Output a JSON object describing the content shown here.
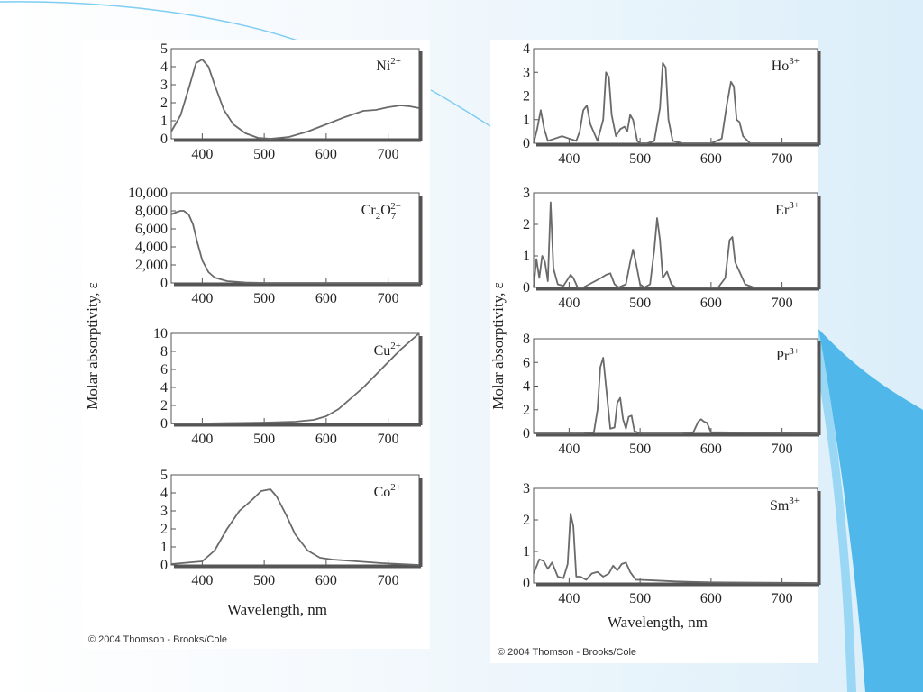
{
  "colors": {
    "curve": "#6a6a6a",
    "frame": "#555555",
    "accent_blue": "#4fb7ea",
    "slide_bg": "#eaf4fb"
  },
  "left_copyright": "© 2004 Thomson - Brooks/Cole",
  "right_copyright": "© 2004 Thomson - Brooks/Cole",
  "left_ylabel": "Molar absorptivity, ε",
  "right_ylabel": "Molar absorptivity, ε",
  "chart_data": [
    {
      "type": "line",
      "panel": "left",
      "ion": "Ni",
      "ion_sup": "2+",
      "xlabel": "",
      "ylabel": "",
      "xlim": [
        350,
        750
      ],
      "ylim": [
        0,
        5
      ],
      "xticks": [
        400,
        500,
        600,
        700
      ],
      "yticks": [
        0,
        1,
        2,
        3,
        4,
        5
      ],
      "ytick_labels": [
        "0",
        "1",
        "2",
        "3",
        "4",
        "5"
      ],
      "series": [
        {
          "x": [
            350,
            365,
            380,
            390,
            400,
            410,
            420,
            435,
            450,
            470,
            490,
            510,
            540,
            570,
            600,
            630,
            660,
            680,
            700,
            720,
            735,
            750
          ],
          "y": [
            0.4,
            1.3,
            3.0,
            4.2,
            4.4,
            4.0,
            3.0,
            1.6,
            0.8,
            0.3,
            0.05,
            0.0,
            0.1,
            0.4,
            0.8,
            1.2,
            1.55,
            1.6,
            1.75,
            1.85,
            1.8,
            1.7
          ]
        }
      ]
    },
    {
      "type": "line",
      "panel": "left",
      "ion": "Cr2O7",
      "ion_sup": "2−",
      "xlabel": "",
      "ylabel": "",
      "xlim": [
        350,
        750
      ],
      "ylim": [
        0,
        10000
      ],
      "xticks": [
        400,
        500,
        600,
        700
      ],
      "yticks": [
        0,
        2000,
        4000,
        6000,
        8000,
        10000
      ],
      "ytick_labels": [
        "0",
        "2,000",
        "4,000",
        "6,000",
        "8,000",
        "10,000"
      ],
      "series": [
        {
          "x": [
            350,
            360,
            365,
            370,
            378,
            385,
            392,
            400,
            410,
            420,
            440,
            470,
            500,
            750
          ],
          "y": [
            7600,
            7900,
            8000,
            8000,
            7600,
            6500,
            4500,
            2500,
            1200,
            600,
            200,
            50,
            0,
            0
          ]
        }
      ]
    },
    {
      "type": "line",
      "panel": "left",
      "ion": "Cu",
      "ion_sup": "2+",
      "xlabel": "",
      "ylabel": "",
      "xlim": [
        350,
        750
      ],
      "ylim": [
        0,
        10
      ],
      "xticks": [
        400,
        500,
        600,
        700
      ],
      "yticks": [
        0,
        2,
        4,
        6,
        8,
        10
      ],
      "ytick_labels": [
        "0",
        "2",
        "4",
        "6",
        "8",
        "10"
      ],
      "series": [
        {
          "x": [
            350,
            400,
            450,
            500,
            550,
            580,
            600,
            620,
            640,
            660,
            680,
            700,
            720,
            740,
            750
          ],
          "y": [
            0,
            0,
            0.05,
            0.1,
            0.2,
            0.4,
            0.8,
            1.6,
            2.8,
            4.0,
            5.4,
            6.8,
            8.2,
            9.4,
            10
          ]
        }
      ]
    },
    {
      "type": "line",
      "panel": "left",
      "ion": "Co",
      "ion_sup": "2+",
      "xlabel": "Wavelength, nm",
      "ylabel": "",
      "xlim": [
        350,
        750
      ],
      "ylim": [
        0,
        5
      ],
      "xticks": [
        400,
        500,
        600,
        700
      ],
      "yticks": [
        0,
        1,
        2,
        3,
        4,
        5
      ],
      "ytick_labels": [
        "0",
        "1",
        "2",
        "3",
        "4",
        "5"
      ],
      "series": [
        {
          "x": [
            350,
            400,
            420,
            440,
            460,
            480,
            495,
            510,
            520,
            535,
            550,
            570,
            590,
            610,
            650,
            690,
            720,
            750
          ],
          "y": [
            0.05,
            0.2,
            0.8,
            2.0,
            3.0,
            3.6,
            4.1,
            4.2,
            3.8,
            2.8,
            1.7,
            0.8,
            0.4,
            0.3,
            0.2,
            0.1,
            0.05,
            0.0
          ]
        }
      ]
    },
    {
      "type": "line",
      "panel": "right",
      "ion": "Ho",
      "ion_sup": "3+",
      "xlabel": "",
      "ylabel": "",
      "xlim": [
        350,
        750
      ],
      "ylim": [
        0,
        4
      ],
      "xticks": [
        400,
        500,
        600,
        700
      ],
      "yticks": [
        0,
        1,
        2,
        3,
        4
      ],
      "ytick_labels": [
        "0",
        "1",
        "2",
        "3",
        "4"
      ],
      "series": [
        {
          "x": [
            350,
            355,
            360,
            365,
            370,
            380,
            390,
            400,
            410,
            415,
            420,
            425,
            430,
            440,
            448,
            452,
            456,
            460,
            466,
            472,
            478,
            482,
            486,
            490,
            496,
            500,
            510,
            520,
            528,
            532,
            536,
            540,
            546,
            560,
            600,
            615,
            622,
            628,
            632,
            636,
            640,
            645,
            655,
            750
          ],
          "y": [
            0,
            0.6,
            1.4,
            0.6,
            0.1,
            0.2,
            0.3,
            0.2,
            0.1,
            0.5,
            1.4,
            1.6,
            0.8,
            0.1,
            1.0,
            3.0,
            2.8,
            1.2,
            0.3,
            0.6,
            0.7,
            0.5,
            1.2,
            1.0,
            0.1,
            0.0,
            0.0,
            0.1,
            1.5,
            3.4,
            3.2,
            1.0,
            0.1,
            0.0,
            0.0,
            0.2,
            1.6,
            2.6,
            2.4,
            1.0,
            0.9,
            0.3,
            0.0,
            0.0
          ]
        }
      ]
    },
    {
      "type": "line",
      "panel": "right",
      "ion": "Er",
      "ion_sup": "3+",
      "xlabel": "",
      "ylabel": "",
      "xlim": [
        350,
        750
      ],
      "ylim": [
        0,
        3
      ],
      "xticks": [
        400,
        500,
        600,
        700
      ],
      "yticks": [
        0,
        1,
        2,
        3
      ],
      "ytick_labels": [
        "0",
        "1",
        "2",
        "3"
      ],
      "series": [
        {
          "x": [
            350,
            354,
            358,
            362,
            366,
            370,
            374,
            378,
            384,
            392,
            402,
            406,
            412,
            420,
            445,
            452,
            458,
            464,
            470,
            480,
            486,
            490,
            494,
            500,
            506,
            514,
            520,
            524,
            528,
            532,
            538,
            544,
            550,
            580,
            610,
            620,
            626,
            630,
            634,
            640,
            648,
            660,
            750
          ],
          "y": [
            0,
            0.9,
            0.3,
            1.0,
            0.8,
            0.2,
            2.7,
            0.6,
            0.1,
            0.05,
            0.4,
            0.3,
            0.0,
            0.0,
            0.3,
            0.4,
            0.45,
            0.1,
            0.0,
            0.1,
            0.8,
            1.2,
            0.8,
            0.1,
            0.0,
            0.1,
            1.2,
            2.2,
            1.5,
            0.3,
            0.5,
            0.1,
            0.0,
            0.0,
            0.0,
            0.3,
            1.5,
            1.6,
            0.8,
            0.5,
            0.1,
            0.0,
            0.0
          ]
        }
      ]
    },
    {
      "type": "line",
      "panel": "right",
      "ion": "Pr",
      "ion_sup": "3+",
      "xlabel": "",
      "ylabel": "",
      "xlim": [
        350,
        750
      ],
      "ylim": [
        0,
        8
      ],
      "xticks": [
        400,
        500,
        600,
        700
      ],
      "yticks": [
        0,
        2,
        4,
        6,
        8
      ],
      "ytick_labels": [
        "0",
        "2",
        "4",
        "6",
        "8"
      ],
      "series": [
        {
          "x": [
            350,
            420,
            435,
            440,
            444,
            448,
            452,
            458,
            464,
            468,
            472,
            476,
            480,
            484,
            488,
            492,
            500,
            560,
            575,
            582,
            586,
            590,
            594,
            600,
            750
          ],
          "y": [
            0,
            0,
            0.1,
            2.0,
            5.6,
            6.4,
            4.0,
            0.4,
            0.5,
            2.6,
            3.0,
            1.2,
            0.4,
            1.4,
            1.5,
            0.2,
            0.0,
            0.0,
            0.1,
            1.0,
            1.2,
            1.0,
            0.9,
            0.1,
            0.0
          ]
        }
      ]
    },
    {
      "type": "line",
      "panel": "right",
      "ion": "Sm",
      "ion_sup": "3+",
      "xlabel": "Wavelength, nm",
      "ylabel": "",
      "xlim": [
        350,
        750
      ],
      "ylim": [
        0,
        3
      ],
      "xticks": [
        400,
        500,
        600,
        700
      ],
      "yticks": [
        0,
        1,
        2,
        3
      ],
      "ytick_labels": [
        "0",
        "1",
        "2",
        "3"
      ],
      "series": [
        {
          "x": [
            350,
            358,
            364,
            370,
            376,
            384,
            392,
            398,
            402,
            406,
            410,
            416,
            424,
            432,
            440,
            448,
            456,
            462,
            468,
            474,
            480,
            486,
            494,
            500,
            520,
            550,
            600,
            750
          ],
          "y": [
            0.3,
            0.75,
            0.7,
            0.45,
            0.65,
            0.2,
            0.15,
            0.6,
            2.2,
            1.8,
            0.2,
            0.2,
            0.1,
            0.3,
            0.35,
            0.2,
            0.3,
            0.55,
            0.4,
            0.6,
            0.65,
            0.35,
            0.1,
            0.1,
            0.08,
            0.05,
            0.02,
            0.0
          ]
        }
      ]
    }
  ]
}
